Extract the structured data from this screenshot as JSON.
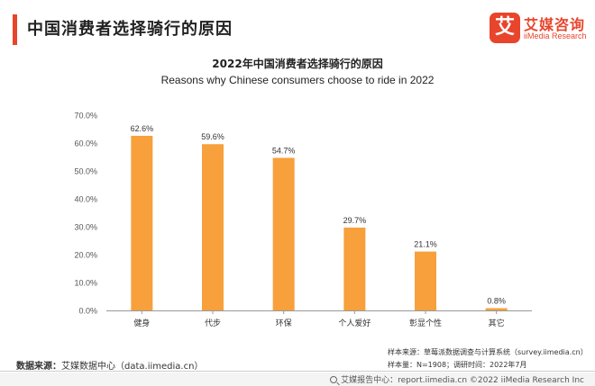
{
  "header": {
    "title": "中国消费者选择骑行的原因"
  },
  "logo": {
    "mark": "艾",
    "name_cn": "艾媒咨询",
    "name_en": "iiMedia Research"
  },
  "chart_data": {
    "type": "bar",
    "title": "2022年中国消费者选择骑行的原因",
    "subtitle": "Reasons why Chinese consumers choose to ride in 2022",
    "categories": [
      "健身",
      "代步",
      "环保",
      "个人爱好",
      "彰显个性",
      "其它"
    ],
    "values": [
      62.6,
      59.6,
      54.7,
      29.7,
      21.1,
      0.8
    ],
    "value_labels": [
      "62.6%",
      "59.6%",
      "54.7%",
      "29.7%",
      "21.1%",
      "0.8%"
    ],
    "y_ticks": [
      "0.0%",
      "10.0%",
      "20.0%",
      "30.0%",
      "40.0%",
      "50.0%",
      "60.0%",
      "70.0%"
    ],
    "ylim": [
      0,
      70
    ],
    "ylabel": "",
    "xlabel": "",
    "bar_color": "#f7a03c",
    "grid": false,
    "legend": "none"
  },
  "source": {
    "label": "数据来源：",
    "text": "艾媒数据中心（data.iimedia.cn）"
  },
  "notes": {
    "line1": "样本来源：草莓派数据调查与计算系统（survey.iimedia.cn）",
    "line2": "样本量：N=1908；调研时间：2022年7月"
  },
  "footer": {
    "text": "艾媒报告中心：report.iimedia.cn   ©2022  iiMedia Research  Inc"
  },
  "colors": {
    "accent": "#e8452c",
    "bar": "#f7a03c",
    "axis": "#999999"
  }
}
